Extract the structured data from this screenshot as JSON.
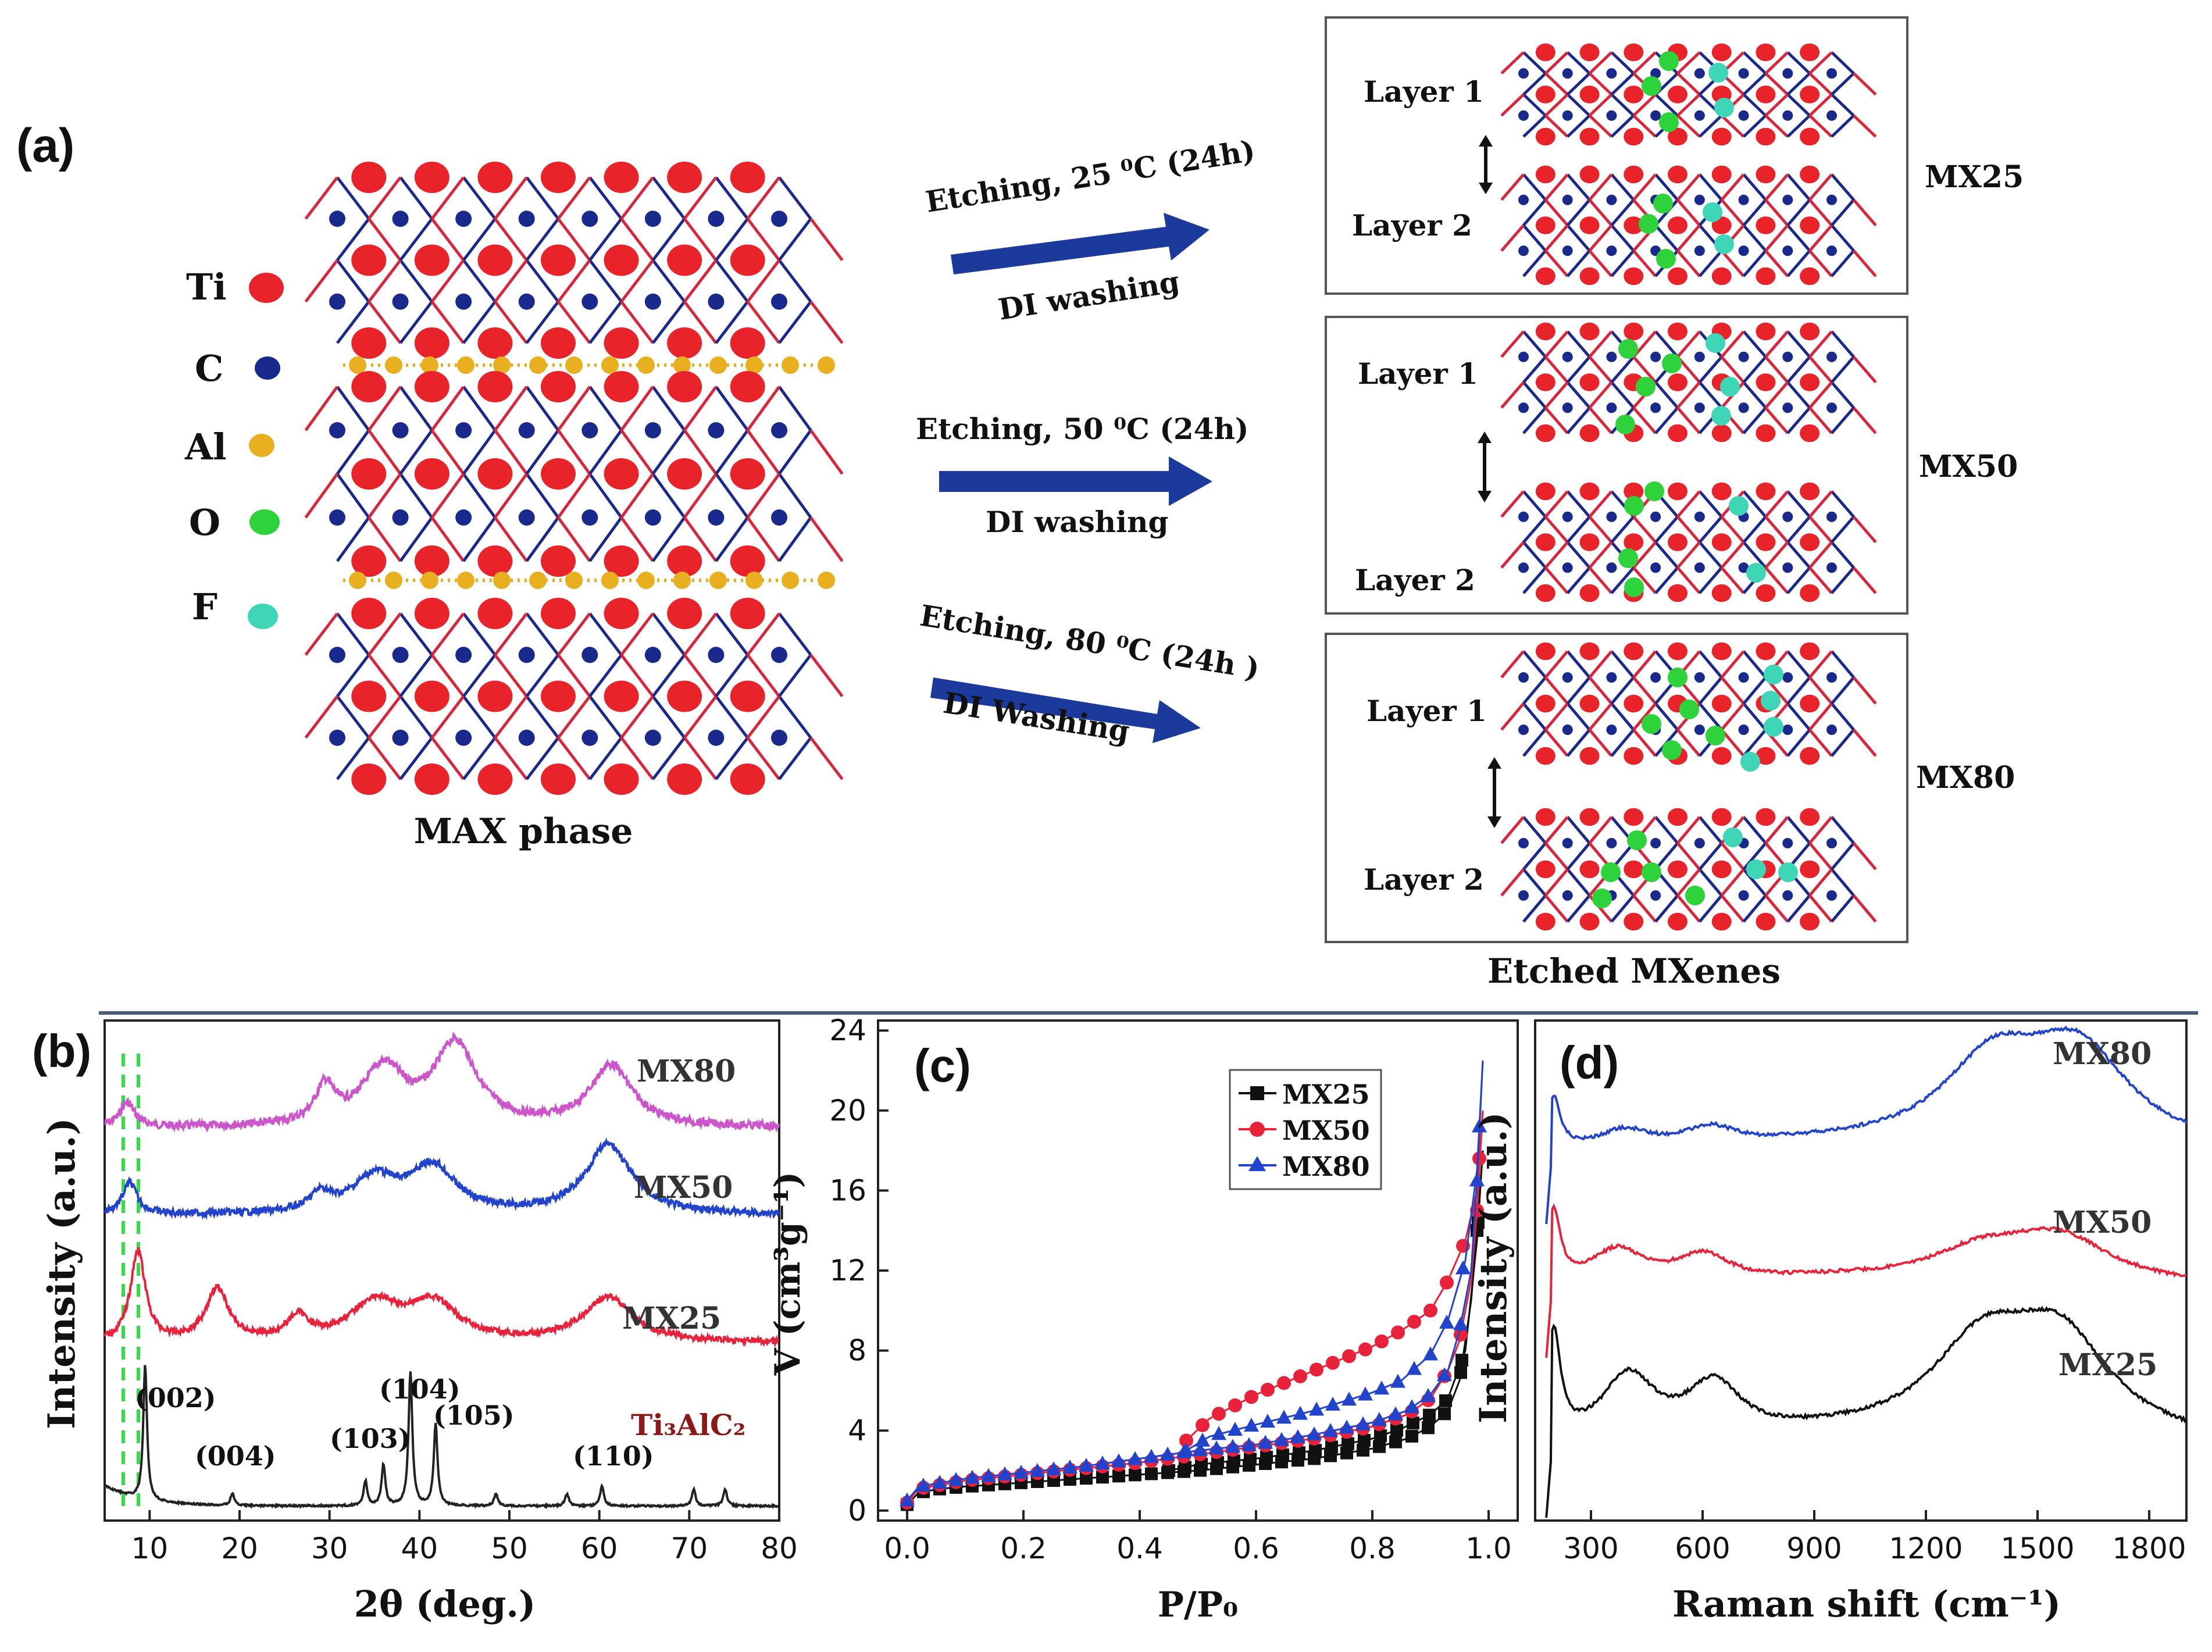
{
  "panel_a": {
    "label": "(a)",
    "legend": [
      {
        "symbol": "Ti",
        "color": "#e8232a"
      },
      {
        "symbol": "C",
        "color": "#1a2a8c"
      },
      {
        "symbol": "Al",
        "color": "#e8b020"
      },
      {
        "symbol": "O",
        "color": "#2ed23a"
      },
      {
        "symbol": "F",
        "color": "#3fd6b8"
      }
    ],
    "max_caption": "MAX phase",
    "arrows": [
      {
        "top": "Etching, 25 ⁰C (24h)",
        "bottom": "DI washing"
      },
      {
        "top": "Etching, 50 ⁰C (24h)",
        "bottom": "DI washing"
      },
      {
        "top": "Etching, 80 ⁰C (24h )",
        "bottom": "DI Washing"
      }
    ],
    "boxes": [
      {
        "name": "MX25",
        "layer1": "Layer 1",
        "layer2": "Layer 2"
      },
      {
        "name": "MX50",
        "layer1": "Layer 1",
        "layer2": "Layer 2"
      },
      {
        "name": "MX80",
        "layer1": "Layer 1",
        "layer2": "Layer 2"
      }
    ],
    "mxenes_caption": "Etched MXenes"
  },
  "chart_data": [
    {
      "id": "b",
      "type": "line",
      "panel_label": "(b)",
      "xlabel": "2θ (deg.)",
      "ylabel": "Intensity (a.u.)",
      "xlim": [
        5,
        80
      ],
      "xticks": [
        "10",
        "20",
        "30",
        "40",
        "50",
        "60",
        "70",
        "80"
      ],
      "series": [
        {
          "name": "MX80",
          "color": "#cc55cc",
          "peaks": [
            [
              7.5,
              0.6
            ],
            [
              29.5,
              0.9
            ],
            [
              36,
              1.4
            ],
            [
              44,
              2.0
            ],
            [
              61.3,
              1.5
            ]
          ]
        },
        {
          "name": "MX50",
          "color": "#2244cc",
          "peaks": [
            [
              7.8,
              0.9
            ],
            [
              29,
              0.5
            ],
            [
              35,
              1.0
            ],
            [
              41.5,
              1.3
            ],
            [
              61,
              2.0
            ]
          ]
        },
        {
          "name": "MX25",
          "color": "#e8223a",
          "peaks": [
            [
              8.7,
              2.4
            ],
            [
              17.5,
              1.4
            ],
            [
              26.5,
              0.6
            ],
            [
              35,
              1.0
            ],
            [
              41.5,
              1.0
            ],
            [
              61,
              1.2
            ]
          ]
        },
        {
          "name": "Ti₃AlC₂",
          "color": "#222222",
          "peaks": [
            [
              9.5,
              3.3
            ],
            [
              19.2,
              0.3
            ],
            [
              34,
              0.6
            ],
            [
              36,
              1.0
            ],
            [
              39,
              3.3
            ],
            [
              41.8,
              2.0
            ],
            [
              48.5,
              0.3
            ],
            [
              56.4,
              0.3
            ],
            [
              60.3,
              0.5
            ],
            [
              70.5,
              0.4
            ],
            [
              74,
              0.4
            ]
          ]
        }
      ],
      "peak_labels": [
        "(002)",
        "(004)",
        "(103)",
        "(104)",
        "(105)",
        "(110)"
      ],
      "reference_label": "Ti₃AlC₂",
      "reference_lines_deg": [
        7.6,
        8.6
      ]
    },
    {
      "id": "c",
      "type": "scatter",
      "panel_label": "(c)",
      "xlabel": "P/P₀",
      "ylabel": "V (cm³g⁻¹)",
      "xlim": [
        -0.05,
        1.05
      ],
      "ylim": [
        -0.5,
        24.5
      ],
      "xticks": [
        "0.0",
        "0.2",
        "0.4",
        "0.6",
        "0.8",
        "1.0"
      ],
      "yticks": [
        "0",
        "4",
        "8",
        "12",
        "16",
        "20",
        "24"
      ],
      "series": [
        {
          "name": "MX25",
          "color": "#111111",
          "marker": "square",
          "adsorption": [
            [
              0.0,
              0.3
            ],
            [
              0.02,
              0.9
            ],
            [
              0.06,
              1.1
            ],
            [
              0.1,
              1.2
            ],
            [
              0.2,
              1.4
            ],
            [
              0.3,
              1.6
            ],
            [
              0.4,
              1.8
            ],
            [
              0.5,
              2.0
            ],
            [
              0.6,
              2.3
            ],
            [
              0.7,
              2.6
            ],
            [
              0.8,
              3.1
            ],
            [
              0.86,
              3.6
            ],
            [
              0.9,
              4.2
            ],
            [
              0.93,
              5.0
            ],
            [
              0.95,
              6.5
            ],
            [
              0.97,
              10.5
            ],
            [
              0.98,
              14.0
            ],
            [
              0.99,
              18.0
            ]
          ],
          "desorption": [
            [
              0.99,
              18.0
            ],
            [
              0.98,
              13.5
            ],
            [
              0.96,
              8.0
            ],
            [
              0.93,
              5.6
            ],
            [
              0.9,
              4.8
            ],
            [
              0.85,
              4.1
            ],
            [
              0.8,
              3.6
            ],
            [
              0.7,
              3.0
            ],
            [
              0.6,
              2.6
            ],
            [
              0.5,
              2.3
            ],
            [
              0.45,
              2.0
            ]
          ]
        },
        {
          "name": "MX50",
          "color": "#e8223a",
          "marker": "circle",
          "adsorption": [
            [
              0.0,
              0.4
            ],
            [
              0.02,
              1.1
            ],
            [
              0.06,
              1.3
            ],
            [
              0.1,
              1.5
            ],
            [
              0.2,
              1.8
            ],
            [
              0.3,
              2.1
            ],
            [
              0.4,
              2.4
            ],
            [
              0.5,
              2.8
            ],
            [
              0.6,
              3.2
            ],
            [
              0.7,
              3.6
            ],
            [
              0.8,
              4.2
            ],
            [
              0.86,
              4.8
            ],
            [
              0.9,
              5.6
            ],
            [
              0.93,
              7.0
            ],
            [
              0.95,
              8.5
            ],
            [
              0.97,
              11.5
            ],
            [
              0.98,
              15.0
            ],
            [
              0.99,
              20.0
            ]
          ],
          "desorption": [
            [
              0.99,
              20.0
            ],
            [
              0.98,
              16.0
            ],
            [
              0.96,
              13.5
            ],
            [
              0.93,
              11.5
            ],
            [
              0.9,
              10.0
            ],
            [
              0.85,
              9.0
            ],
            [
              0.8,
              8.2
            ],
            [
              0.7,
              7.0
            ],
            [
              0.6,
              5.8
            ],
            [
              0.52,
              4.6
            ],
            [
              0.48,
              3.5
            ]
          ]
        },
        {
          "name": "MX80",
          "color": "#2244cc",
          "marker": "triangle",
          "adsorption": [
            [
              0.0,
              0.5
            ],
            [
              0.02,
              1.2
            ],
            [
              0.06,
              1.4
            ],
            [
              0.1,
              1.6
            ],
            [
              0.2,
              1.9
            ],
            [
              0.3,
              2.2
            ],
            [
              0.4,
              2.6
            ],
            [
              0.5,
              3.0
            ],
            [
              0.6,
              3.3
            ],
            [
              0.7,
              3.8
            ],
            [
              0.8,
              4.4
            ],
            [
              0.86,
              5.0
            ],
            [
              0.9,
              5.8
            ],
            [
              0.93,
              7.0
            ],
            [
              0.95,
              9.0
            ],
            [
              0.97,
              12.0
            ],
            [
              0.98,
              16.5
            ],
            [
              0.99,
              22.5
            ]
          ],
          "desorption": [
            [
              0.99,
              22.5
            ],
            [
              0.98,
              17.0
            ],
            [
              0.96,
              12.5
            ],
            [
              0.93,
              9.5
            ],
            [
              0.9,
              7.8
            ],
            [
              0.85,
              6.5
            ],
            [
              0.8,
              5.9
            ],
            [
              0.7,
              5.0
            ],
            [
              0.6,
              4.3
            ],
            [
              0.52,
              3.7
            ],
            [
              0.48,
              3.0
            ]
          ]
        }
      ]
    },
    {
      "id": "d",
      "type": "line",
      "panel_label": "(d)",
      "xlabel": "Raman shift (cm⁻¹)",
      "ylabel": "Intensity (a.u.)",
      "xlim": [
        150,
        1900
      ],
      "xticks": [
        "300",
        "600",
        "900",
        "1200",
        "1500",
        "1800"
      ],
      "series": [
        {
          "name": "MX80",
          "color": "#2244cc",
          "peaks": [
            [
              200,
              1.6
            ],
            [
              390,
              0.6
            ],
            [
              620,
              0.6
            ],
            [
              1380,
              2.6
            ],
            [
              1610,
              2.9
            ]
          ],
          "rise": 1.2
        },
        {
          "name": "MX50",
          "color": "#e8223a",
          "peaks": [
            [
              200,
              2.0
            ],
            [
              370,
              1.0
            ],
            [
              600,
              0.8
            ],
            [
              1350,
              0.9
            ],
            [
              1560,
              1.3
            ]
          ],
          "rise": 1.6
        },
        {
          "name": "MX25",
          "color": "#111111",
          "peaks": [
            [
              200,
              2.6
            ],
            [
              400,
              1.6
            ],
            [
              630,
              1.3
            ],
            [
              1350,
              2.2
            ],
            [
              1560,
              2.4
            ]
          ],
          "rise": 2.0
        }
      ]
    }
  ]
}
